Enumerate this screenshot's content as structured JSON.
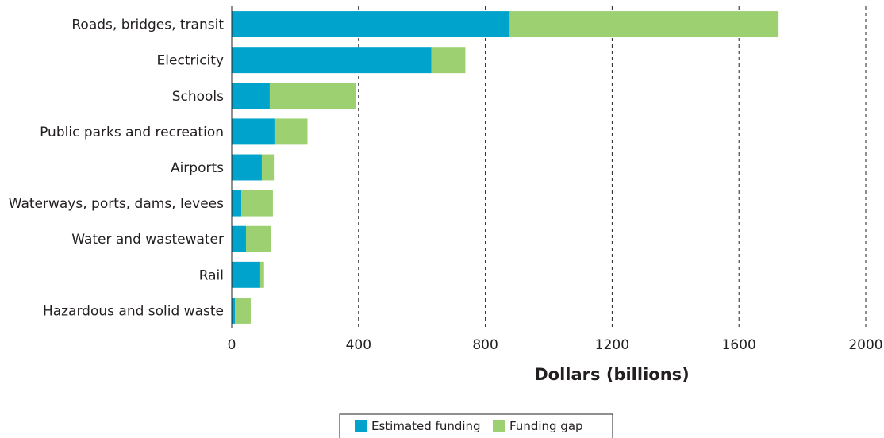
{
  "chart_data": {
    "type": "bar",
    "orientation": "horizontal",
    "stacked": true,
    "categories": [
      "Roads, bridges, transit",
      "Electricity",
      "Schools",
      "Public parks and recreation",
      "Airports",
      "Waterways, ports, dams, levees",
      "Water and wastewater",
      "Rail",
      "Hazardous and solid waste"
    ],
    "series": [
      {
        "name": "Estimated funding",
        "color": "#00a3cc",
        "values": [
          877,
          630,
          120,
          135,
          95,
          30,
          45,
          90,
          10
        ]
      },
      {
        "name": "Funding gap",
        "color": "#9dd071",
        "values": [
          848,
          107,
          271,
          104,
          38,
          100,
          80,
          12,
          50
        ]
      }
    ],
    "xlabel": "Dollars (billions)",
    "xlim": [
      0,
      2000
    ],
    "xticks": [
      0,
      400,
      800,
      1200,
      1600,
      2000
    ],
    "grid": "vertical-dashed",
    "legend": "bottom-center"
  }
}
